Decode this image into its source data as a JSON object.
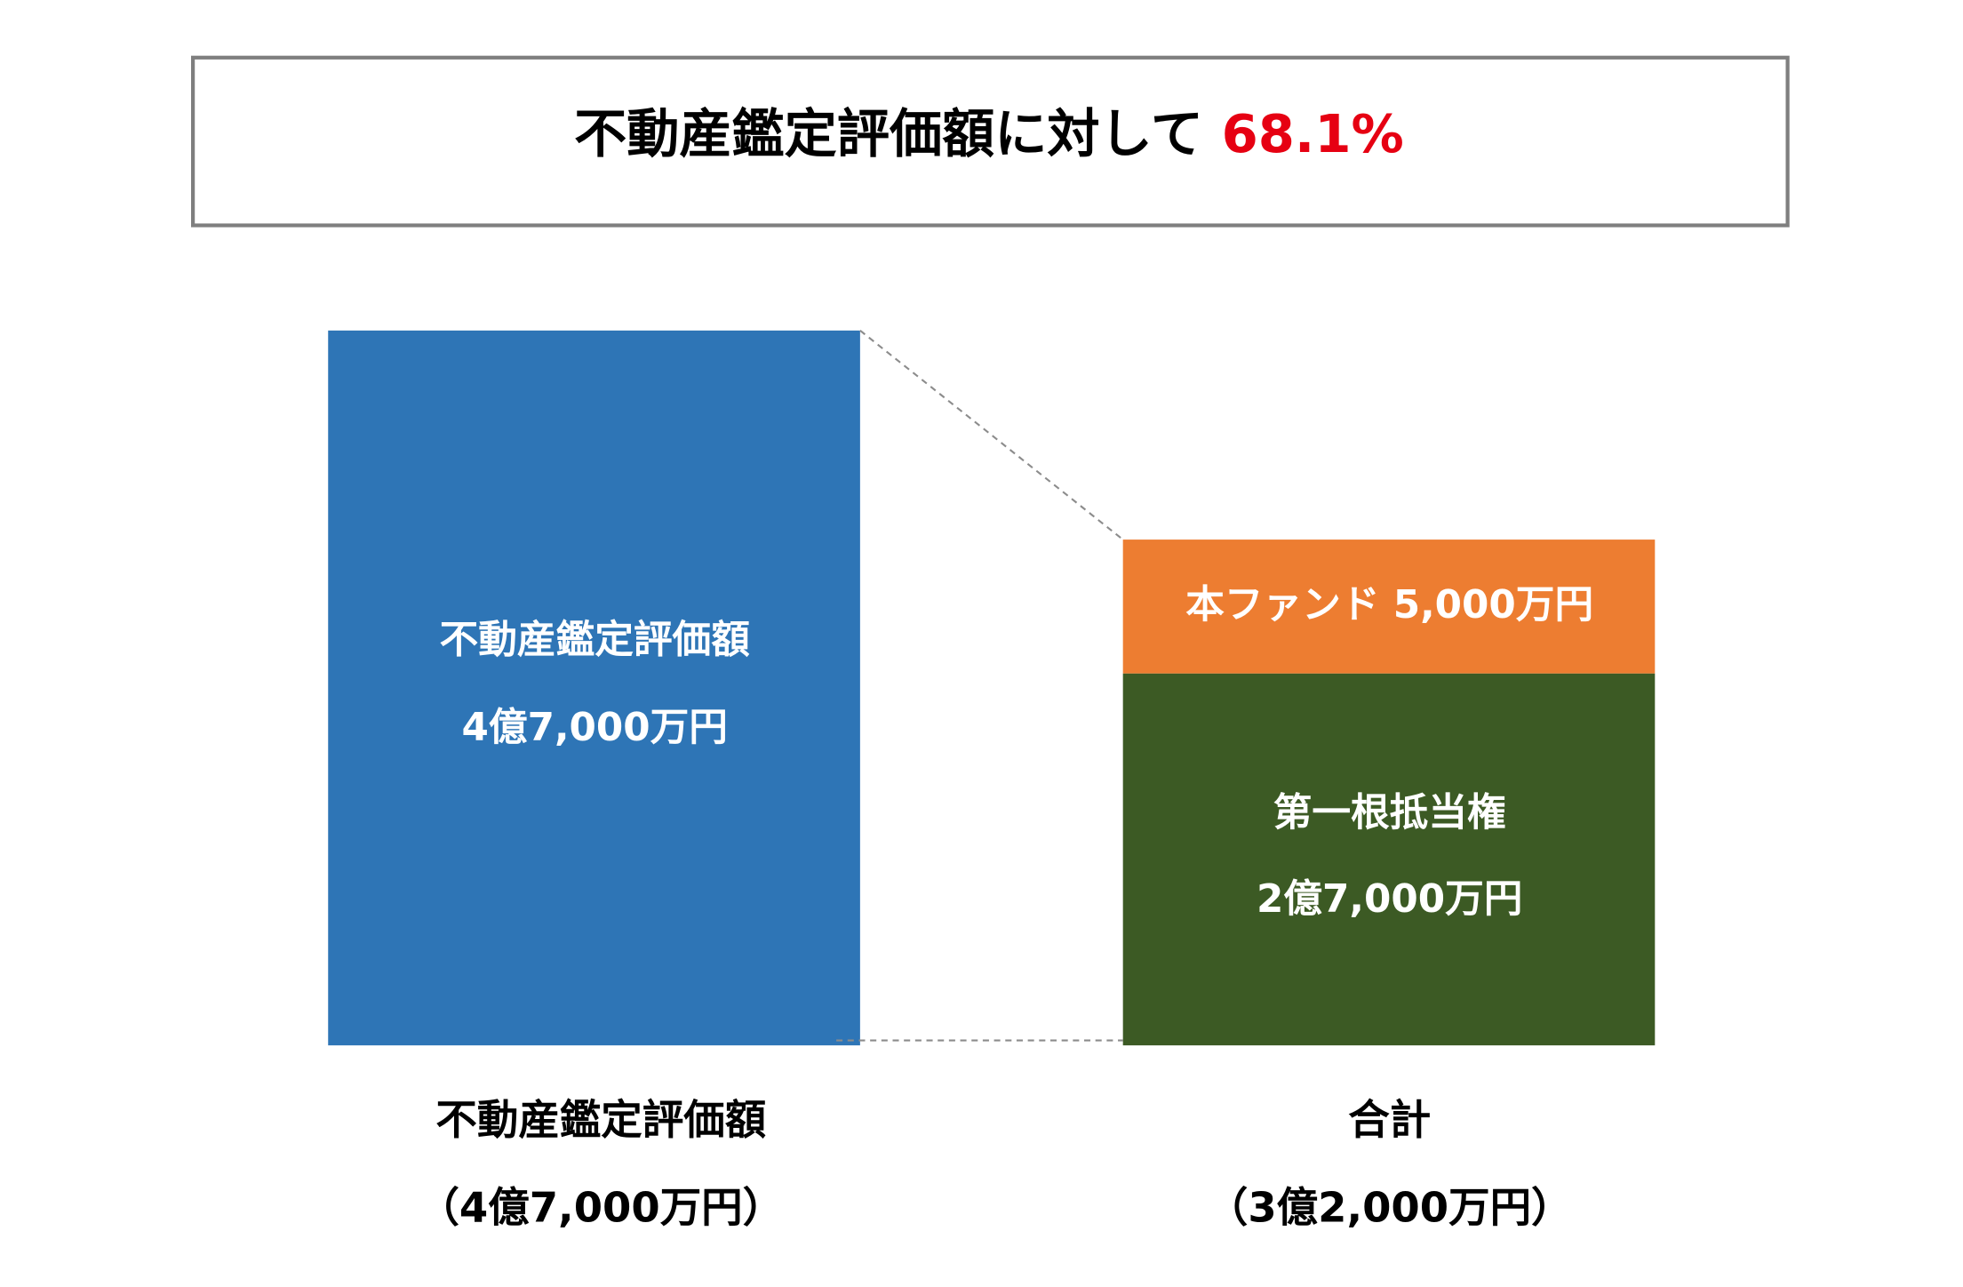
{
  "header": {
    "title": "不動産鑑定評価額に対して",
    "value": "68.1%"
  },
  "left": {
    "bar_label": "不動産鑑定評価額",
    "bar_amount": "4億7,000万円",
    "caption": "不動産鑑定評価額",
    "caption_amount": "（4億7,000万円）"
  },
  "right": {
    "top_label": "本ファンド 5,000万円",
    "bottom_label": "第一根抵当権",
    "bottom_amount": "2億7,000万円",
    "caption": "合計",
    "caption_amount": "（3億2,000万円）"
  }
}
